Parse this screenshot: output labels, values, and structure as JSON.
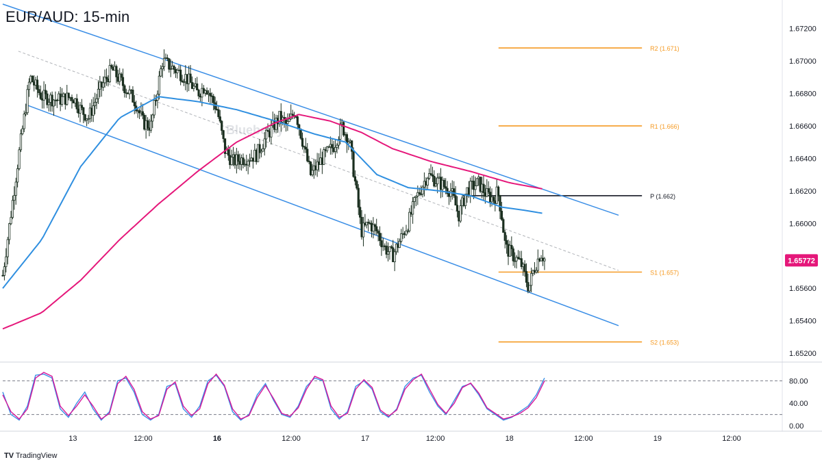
{
  "chart_data": [
    {
      "type": "candlestick",
      "title": "EUR/AUD: 15-min",
      "ylim": [
        1.6515,
        1.6735
      ],
      "y_ticks": [
        "1.67200",
        "1.67000",
        "1.66800",
        "1.66600",
        "1.66400",
        "1.66200",
        "1.66000",
        "1.65600",
        "1.65400",
        "1.65200"
      ],
      "x_ticks": [
        "13",
        "12:00",
        "16",
        "12:00",
        "17",
        "12:00",
        "18",
        "12:00",
        "19",
        "12:00"
      ],
      "current_price": "1.65772",
      "colors": {
        "candle": "#1a2e1f",
        "channel": "#3a8ee6",
        "sma_fast": "#2f8fe0",
        "sma_slow": "#e5177a",
        "pivot_levels": "#f59a22",
        "pivot": "#131722",
        "midline": "#b0b3b8",
        "price_label_bg": "#e5177a"
      },
      "pivot_levels": [
        {
          "label": "R2 (1.671)",
          "value": 1.6708
        },
        {
          "label": "R1 (1.666)",
          "value": 1.666
        },
        {
          "label": "P (1.662)",
          "value": 1.6617
        },
        {
          "label": "S1 (1.657)",
          "value": 1.657
        },
        {
          "label": "S2 (1.653)",
          "value": 1.6527
        }
      ],
      "channel": {
        "upper": [
          [
            0.0,
            1.6735
          ],
          [
            0.79,
            1.6605
          ]
        ],
        "lower": [
          [
            0.03,
            1.6673
          ],
          [
            0.79,
            1.6537
          ]
        ],
        "mid": [
          [
            0.02,
            1.6706
          ],
          [
            0.79,
            1.6571
          ]
        ]
      },
      "close_path": [
        [
          0.0,
          1.6568
        ],
        [
          0.02,
          1.664
        ],
        [
          0.035,
          1.669
        ],
        [
          0.05,
          1.6678
        ],
        [
          0.07,
          1.6676
        ],
        [
          0.09,
          1.6678
        ],
        [
          0.1,
          1.667
        ],
        [
          0.11,
          1.6665
        ],
        [
          0.125,
          1.6683
        ],
        [
          0.14,
          1.6695
        ],
        [
          0.155,
          1.6685
        ],
        [
          0.17,
          1.6675
        ],
        [
          0.18,
          1.6662
        ],
        [
          0.19,
          1.666
        ],
        [
          0.205,
          1.67
        ],
        [
          0.22,
          1.6695
        ],
        [
          0.235,
          1.669
        ],
        [
          0.25,
          1.668
        ],
        [
          0.26,
          1.6685
        ],
        [
          0.275,
          1.667
        ],
        [
          0.285,
          1.6645
        ],
        [
          0.295,
          1.6638
        ],
        [
          0.31,
          1.664
        ],
        [
          0.325,
          1.6642
        ],
        [
          0.34,
          1.6655
        ],
        [
          0.355,
          1.6665
        ],
        [
          0.365,
          1.666
        ],
        [
          0.375,
          1.667
        ],
        [
          0.385,
          1.665
        ],
        [
          0.395,
          1.663
        ],
        [
          0.41,
          1.664
        ],
        [
          0.425,
          1.6648
        ],
        [
          0.435,
          1.666
        ],
        [
          0.445,
          1.665
        ],
        [
          0.455,
          1.6615
        ],
        [
          0.46,
          1.6595
        ],
        [
          0.47,
          1.66
        ],
        [
          0.48,
          1.6595
        ],
        [
          0.49,
          1.6585
        ],
        [
          0.5,
          1.658
        ],
        [
          0.51,
          1.659
        ],
        [
          0.52,
          1.66
        ],
        [
          0.53,
          1.6615
        ],
        [
          0.545,
          1.663
        ],
        [
          0.56,
          1.6625
        ],
        [
          0.575,
          1.662
        ],
        [
          0.585,
          1.6605
        ],
        [
          0.595,
          1.662
        ],
        [
          0.61,
          1.6625
        ],
        [
          0.62,
          1.6618
        ],
        [
          0.63,
          1.6615
        ],
        [
          0.635,
          1.662
        ],
        [
          0.64,
          1.6605
        ],
        [
          0.645,
          1.6585
        ],
        [
          0.655,
          1.658
        ],
        [
          0.665,
          1.6575
        ],
        [
          0.675,
          1.656
        ],
        [
          0.68,
          1.657
        ],
        [
          0.69,
          1.6582
        ],
        [
          0.695,
          1.6578
        ]
      ],
      "sma_fast": [
        [
          0.0,
          1.656
        ],
        [
          0.05,
          1.659
        ],
        [
          0.1,
          1.6635
        ],
        [
          0.15,
          1.6665
        ],
        [
          0.2,
          1.6678
        ],
        [
          0.25,
          1.6675
        ],
        [
          0.3,
          1.667
        ],
        [
          0.35,
          1.6663
        ],
        [
          0.4,
          1.6655
        ],
        [
          0.44,
          1.665
        ],
        [
          0.48,
          1.663
        ],
        [
          0.52,
          1.6622
        ],
        [
          0.56,
          1.662
        ],
        [
          0.6,
          1.6617
        ],
        [
          0.64,
          1.661
        ],
        [
          0.67,
          1.6608
        ],
        [
          0.695,
          1.6606
        ]
      ],
      "sma_slow": [
        [
          0.0,
          1.6535
        ],
        [
          0.05,
          1.6545
        ],
        [
          0.1,
          1.6565
        ],
        [
          0.15,
          1.659
        ],
        [
          0.2,
          1.6612
        ],
        [
          0.25,
          1.6632
        ],
        [
          0.3,
          1.665
        ],
        [
          0.35,
          1.6662
        ],
        [
          0.38,
          1.6667
        ],
        [
          0.42,
          1.6663
        ],
        [
          0.46,
          1.6656
        ],
        [
          0.5,
          1.6646
        ],
        [
          0.55,
          1.6638
        ],
        [
          0.6,
          1.6632
        ],
        [
          0.65,
          1.6625
        ],
        [
          0.695,
          1.6621
        ]
      ]
    },
    {
      "type": "line",
      "indicator": "stochastic",
      "ylim": [
        0,
        100
      ],
      "y_ticks": [
        "80.00",
        "40.00",
        "0.00"
      ],
      "levels": [
        80,
        20
      ],
      "series": [
        {
          "color": "#3a8ee6",
          "values": [
            60,
            20,
            10,
            35,
            90,
            92,
            85,
            30,
            15,
            40,
            60,
            30,
            10,
            25,
            80,
            85,
            60,
            20,
            10,
            20,
            70,
            75,
            30,
            15,
            35,
            80,
            90,
            70,
            25,
            10,
            20,
            55,
            75,
            45,
            20,
            15,
            35,
            70,
            85,
            80,
            30,
            12,
            25,
            70,
            80,
            65,
            25,
            15,
            30,
            70,
            85,
            90,
            60,
            35,
            20,
            45,
            70,
            75,
            55,
            30,
            20,
            10,
            15,
            25,
            35,
            55,
            85
          ]
        },
        {
          "color": "#d6179a",
          "values": [
            55,
            25,
            12,
            30,
            85,
            95,
            88,
            35,
            18,
            35,
            55,
            35,
            12,
            22,
            75,
            88,
            65,
            25,
            12,
            18,
            65,
            78,
            35,
            18,
            30,
            75,
            92,
            72,
            30,
            12,
            18,
            50,
            72,
            48,
            22,
            17,
            32,
            65,
            88,
            82,
            35,
            15,
            22,
            65,
            82,
            68,
            28,
            17,
            28,
            65,
            82,
            92,
            65,
            38,
            22,
            40,
            68,
            76,
            58,
            32,
            22,
            12,
            16,
            22,
            32,
            50,
            80
          ]
        }
      ]
    }
  ],
  "branding": {
    "logo": "TV",
    "name": "TradingView"
  },
  "watermark": "Blueberry"
}
